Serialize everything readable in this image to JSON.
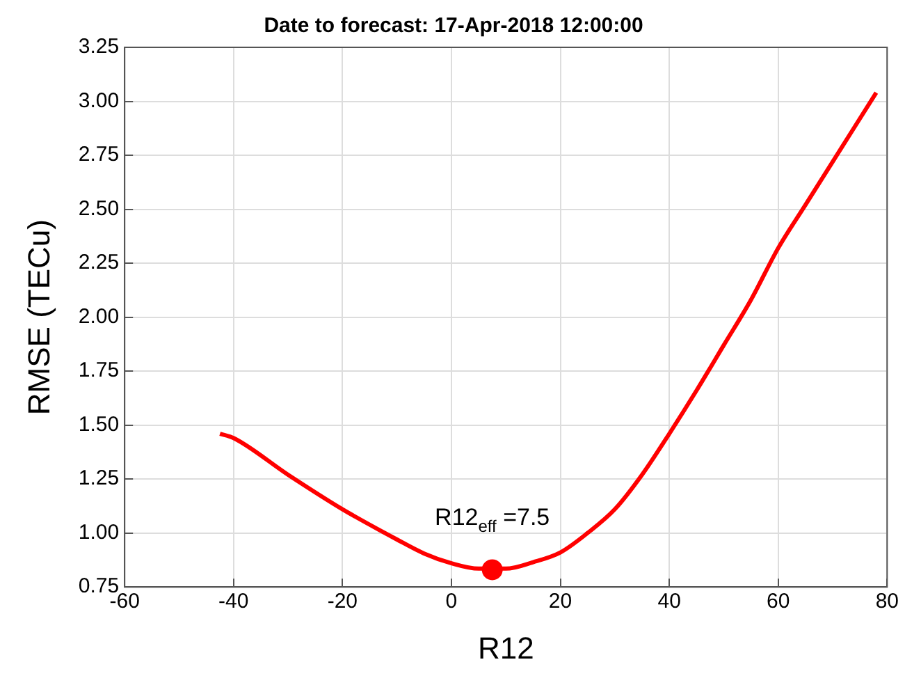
{
  "chart_data": {
    "type": "line",
    "title": "Date to forecast: 17-Apr-2018 12:00:00",
    "xlabel": "R12",
    "ylabel": "RMSE (TECu)",
    "series": [
      {
        "color": "#ff0000",
        "marker": "none",
        "x": [
          -42.5,
          -40,
          -30,
          -20,
          -10,
          -5,
          0,
          5,
          10,
          15,
          20,
          25,
          30,
          35,
          40,
          45,
          50,
          55,
          60,
          65,
          70,
          78
        ],
        "values": [
          1.46,
          1.44,
          1.27,
          1.11,
          0.97,
          0.905,
          0.86,
          0.835,
          0.835,
          0.865,
          0.91,
          1.0,
          1.11,
          1.27,
          1.46,
          1.66,
          1.87,
          2.08,
          2.32,
          2.52,
          2.72,
          3.04
        ]
      },
      {
        "type": "scatter",
        "color": "#ff0000",
        "marker": "circle",
        "x": [
          7.5
        ],
        "values": [
          0.83
        ]
      }
    ],
    "annotations": [
      {
        "text": "R12$_{eff}$ =7.5",
        "x": 7.5,
        "y": 0.83
      }
    ],
    "xlim": [
      -60,
      80
    ],
    "xticks": [
      -60,
      -40,
      -20,
      0,
      20,
      40,
      60,
      80
    ],
    "ylim": [
      0.75,
      3.25
    ],
    "yticks": [
      {
        "value": 0.75,
        "label": "0.75"
      },
      {
        "value": 1,
        "label": "1.00"
      },
      {
        "value": 1.25,
        "label": "1.25"
      },
      {
        "value": 1.5,
        "label": "1.50"
      },
      {
        "value": 1.75,
        "label": "1.75"
      },
      {
        "value": 2,
        "label": "2.00"
      },
      {
        "value": 2.25,
        "label": "2.25"
      },
      {
        "value": 2.5,
        "label": "2.50"
      },
      {
        "value": 2.75,
        "label": "2.75"
      },
      {
        "value": 3,
        "label": "3.00"
      },
      {
        "value": 3.25,
        "label": "3.25"
      }
    ],
    "grid": true,
    "legend": false
  }
}
